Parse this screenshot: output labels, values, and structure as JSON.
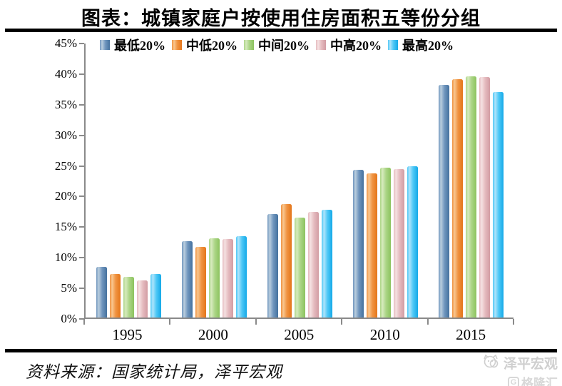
{
  "title": "图表：城镇家庭户按使用住房面积五等份分组",
  "source_text": "资料来源：国家统计局，泽平宏观",
  "watermark": {
    "icon": "cat-face-icon",
    "brand": "泽平宏观",
    "partner_logo_letter": "G",
    "partner": "格隆汇"
  },
  "axis_color": "#8a8a8a",
  "chart_data": {
    "type": "bar",
    "title": "城镇家庭户按使用住房面积五等份分组",
    "categories": [
      "1995",
      "2000",
      "2005",
      "2010",
      "2015"
    ],
    "series": [
      {
        "name": "最低20%",
        "color": "#7096be",
        "highlight": "#b9cdde",
        "dark": "#44719e",
        "values": [
          8.3,
          12.5,
          17.0,
          24.3,
          38.2
        ]
      },
      {
        "name": "中低20%",
        "color": "#f09341",
        "highlight": "#f8c68f",
        "dark": "#e4761a",
        "values": [
          7.2,
          11.6,
          18.6,
          23.7,
          39.2
        ]
      },
      {
        "name": "中间20%",
        "color": "#abd586",
        "highlight": "#d6eabd",
        "dark": "#8cc35e",
        "values": [
          6.7,
          13.0,
          16.4,
          24.6,
          39.6
        ]
      },
      {
        "name": "中高20%",
        "color": "#e5bbbf",
        "highlight": "#f5e1e2",
        "dark": "#d29ca3",
        "values": [
          6.1,
          12.9,
          17.3,
          24.4,
          39.5
        ]
      },
      {
        "name": "最高20%",
        "color": "#4ec8f6",
        "highlight": "#aee4fb",
        "dark": "#14a9e8",
        "values": [
          7.2,
          13.4,
          17.7,
          24.9,
          37.0
        ]
      }
    ],
    "xlabel": "",
    "ylabel": "",
    "ylim": [
      0,
      45
    ],
    "ytick_step": 5,
    "ytick_labels": [
      "0%",
      "5%",
      "10%",
      "15%",
      "20%",
      "25%",
      "30%",
      "35%",
      "40%",
      "45%"
    ],
    "grid": false,
    "legend_position": "top"
  }
}
